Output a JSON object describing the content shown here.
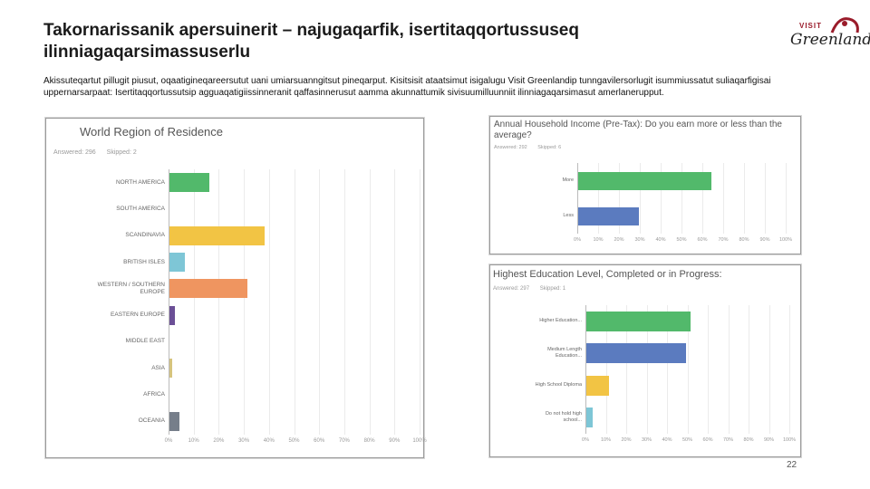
{
  "slide": {
    "title": "Takornarissanik apersuinerit – najugaqarfik, isertitaqqortussuseq ilinniagaqarsimassuserlu",
    "intro": "Akissuteqartut pillugit piusut, oqaatigineqareersutut uani umiarsuanngitsut pineqarput. Kisitsisit ataatsimut isigalugu Visit Greenlandip tunngavilersorlugit isummiussatut suliaqarfigisai uppernarsarpaat: Isertitaqqortussutsip agguaqatigiissinneranit qaffasinnerusut aamma akunnattumik sivisuumilluunniit ilinniagaqarsimasut amerlanerupput.",
    "page_number": "22"
  },
  "logo": {
    "top": "VISIT",
    "bottom": "Greenland"
  },
  "colors": {
    "green": "#52b96b",
    "blue": "#5b7bbf",
    "yellow": "#f2c444",
    "lightblue": "#7ec6d6",
    "orange": "#ef9560",
    "purple": "#6b4f96",
    "khaki": "#d6c47e",
    "gray": "#767e8a"
  },
  "charts": {
    "region": {
      "title": "World Region of Residence",
      "answered": "Answered: 296",
      "skipped": "Skipped: 2"
    },
    "income": {
      "title": "Annual Household Income (Pre-Tax): Do you earn more or less than the average?",
      "answered": "Answered: 292",
      "skipped": "Skipped: 6"
    },
    "education": {
      "title": "Highest Education Level, Completed or in Progress:",
      "answered": "Answered: 297",
      "skipped": "Skipped: 1"
    }
  },
  "chart_data": [
    {
      "type": "bar",
      "orientation": "horizontal",
      "title": "World Region of Residence",
      "categories": [
        "NORTH AMERICA",
        "SOUTH AMERICA",
        "SCANDINAVIA",
        "BRITISH ISLES",
        "WESTERN / SOUTHERN EUROPE",
        "EASTERN EUROPE",
        "MIDDLE EAST",
        "ASIA",
        "AFRICA",
        "OCEANIA"
      ],
      "values": [
        16,
        0,
        38,
        6,
        31,
        2,
        0,
        1,
        0,
        4
      ],
      "colors": [
        "#52b96b",
        "#5b7bbf",
        "#f2c444",
        "#7ec6d6",
        "#ef9560",
        "#6b4f96",
        "#52b96b",
        "#d6c47e",
        "#5b7bbf",
        "#767e8a"
      ],
      "xticks": [
        "0%",
        "10%",
        "20%",
        "30%",
        "40%",
        "50%",
        "60%",
        "70%",
        "80%",
        "90%",
        "100%"
      ],
      "xlim": [
        0,
        100
      ]
    },
    {
      "type": "bar",
      "orientation": "horizontal",
      "title": "Annual Household Income (Pre-Tax): Do you earn more or less than the average?",
      "categories": [
        "More",
        "Less"
      ],
      "values": [
        64,
        29
      ],
      "colors": [
        "#52b96b",
        "#5b7bbf"
      ],
      "xticks": [
        "0%",
        "10%",
        "20%",
        "30%",
        "40%",
        "50%",
        "60%",
        "70%",
        "80%",
        "90%",
        "100%"
      ],
      "xlim": [
        0,
        100
      ]
    },
    {
      "type": "bar",
      "orientation": "horizontal",
      "title": "Highest Education Level, Completed or in Progress:",
      "categories": [
        "Higher Education...",
        "Medium Length Education...",
        "High School Diploma",
        "Do not hold high school..."
      ],
      "values": [
        51,
        49,
        11,
        3
      ],
      "colors": [
        "#52b96b",
        "#5b7bbf",
        "#f2c444",
        "#7ec6d6"
      ],
      "xticks": [
        "0%",
        "10%",
        "20%",
        "30%",
        "40%",
        "50%",
        "60%",
        "70%",
        "80%",
        "90%",
        "100%"
      ],
      "xlim": [
        0,
        100
      ]
    }
  ]
}
